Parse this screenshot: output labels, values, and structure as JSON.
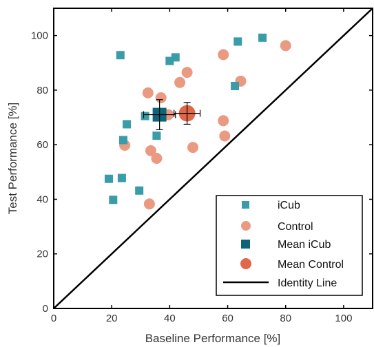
{
  "chart_data": {
    "type": "scatter",
    "xlabel": "Baseline Performance [%]",
    "ylabel": "Test Performance [%]",
    "xlim": [
      0,
      110
    ],
    "ylim": [
      0,
      110
    ],
    "xticks": [
      0,
      20,
      40,
      60,
      80,
      100
    ],
    "yticks": [
      0,
      20,
      40,
      60,
      80,
      100
    ],
    "legend_position": "bottom-right",
    "colors": {
      "icub": "#3a9ca8",
      "control": "#eb9a82",
      "mean_icub": "#0e6478",
      "mean_control": "#e0674a",
      "identity": "#000000"
    },
    "series": [
      {
        "name": "iCub",
        "marker": "square",
        "points": [
          [
            23,
            92.8
          ],
          [
            40,
            90.7
          ],
          [
            42,
            92
          ],
          [
            63.5,
            97.8
          ],
          [
            72,
            99.2
          ],
          [
            62.5,
            81.5
          ],
          [
            25.2,
            67.5
          ],
          [
            31.5,
            70.5
          ],
          [
            35.5,
            63.3
          ],
          [
            24,
            61.7
          ],
          [
            19,
            47.5
          ],
          [
            23.5,
            47.8
          ],
          [
            20.5,
            39.8
          ],
          [
            29.5,
            43.2
          ]
        ]
      },
      {
        "name": "Control",
        "marker": "circle",
        "points": [
          [
            46,
            86.5
          ],
          [
            58.5,
            93
          ],
          [
            80,
            96.3
          ],
          [
            43.5,
            82.8
          ],
          [
            64.5,
            83.3
          ],
          [
            32.5,
            79
          ],
          [
            37,
            77.2
          ],
          [
            39.5,
            71
          ],
          [
            58.5,
            68.8
          ],
          [
            59,
            63.2
          ],
          [
            48,
            59
          ],
          [
            24.5,
            59.8
          ],
          [
            33.5,
            57.8
          ],
          [
            35.5,
            55
          ],
          [
            33,
            38.3
          ]
        ]
      },
      {
        "name": "Mean iCub",
        "marker": "square",
        "points": [
          [
            36.5,
            71
          ]
        ],
        "x_error": 5.5,
        "y_error": 5.5
      },
      {
        "name": "Mean Control",
        "marker": "circle",
        "points": [
          [
            46,
            71.5
          ]
        ],
        "x_error": 4.5,
        "y_error": 4.0
      },
      {
        "name": "Identity Line",
        "marker": "line",
        "points": [
          [
            0,
            0
          ],
          [
            110,
            110
          ]
        ]
      }
    ]
  }
}
